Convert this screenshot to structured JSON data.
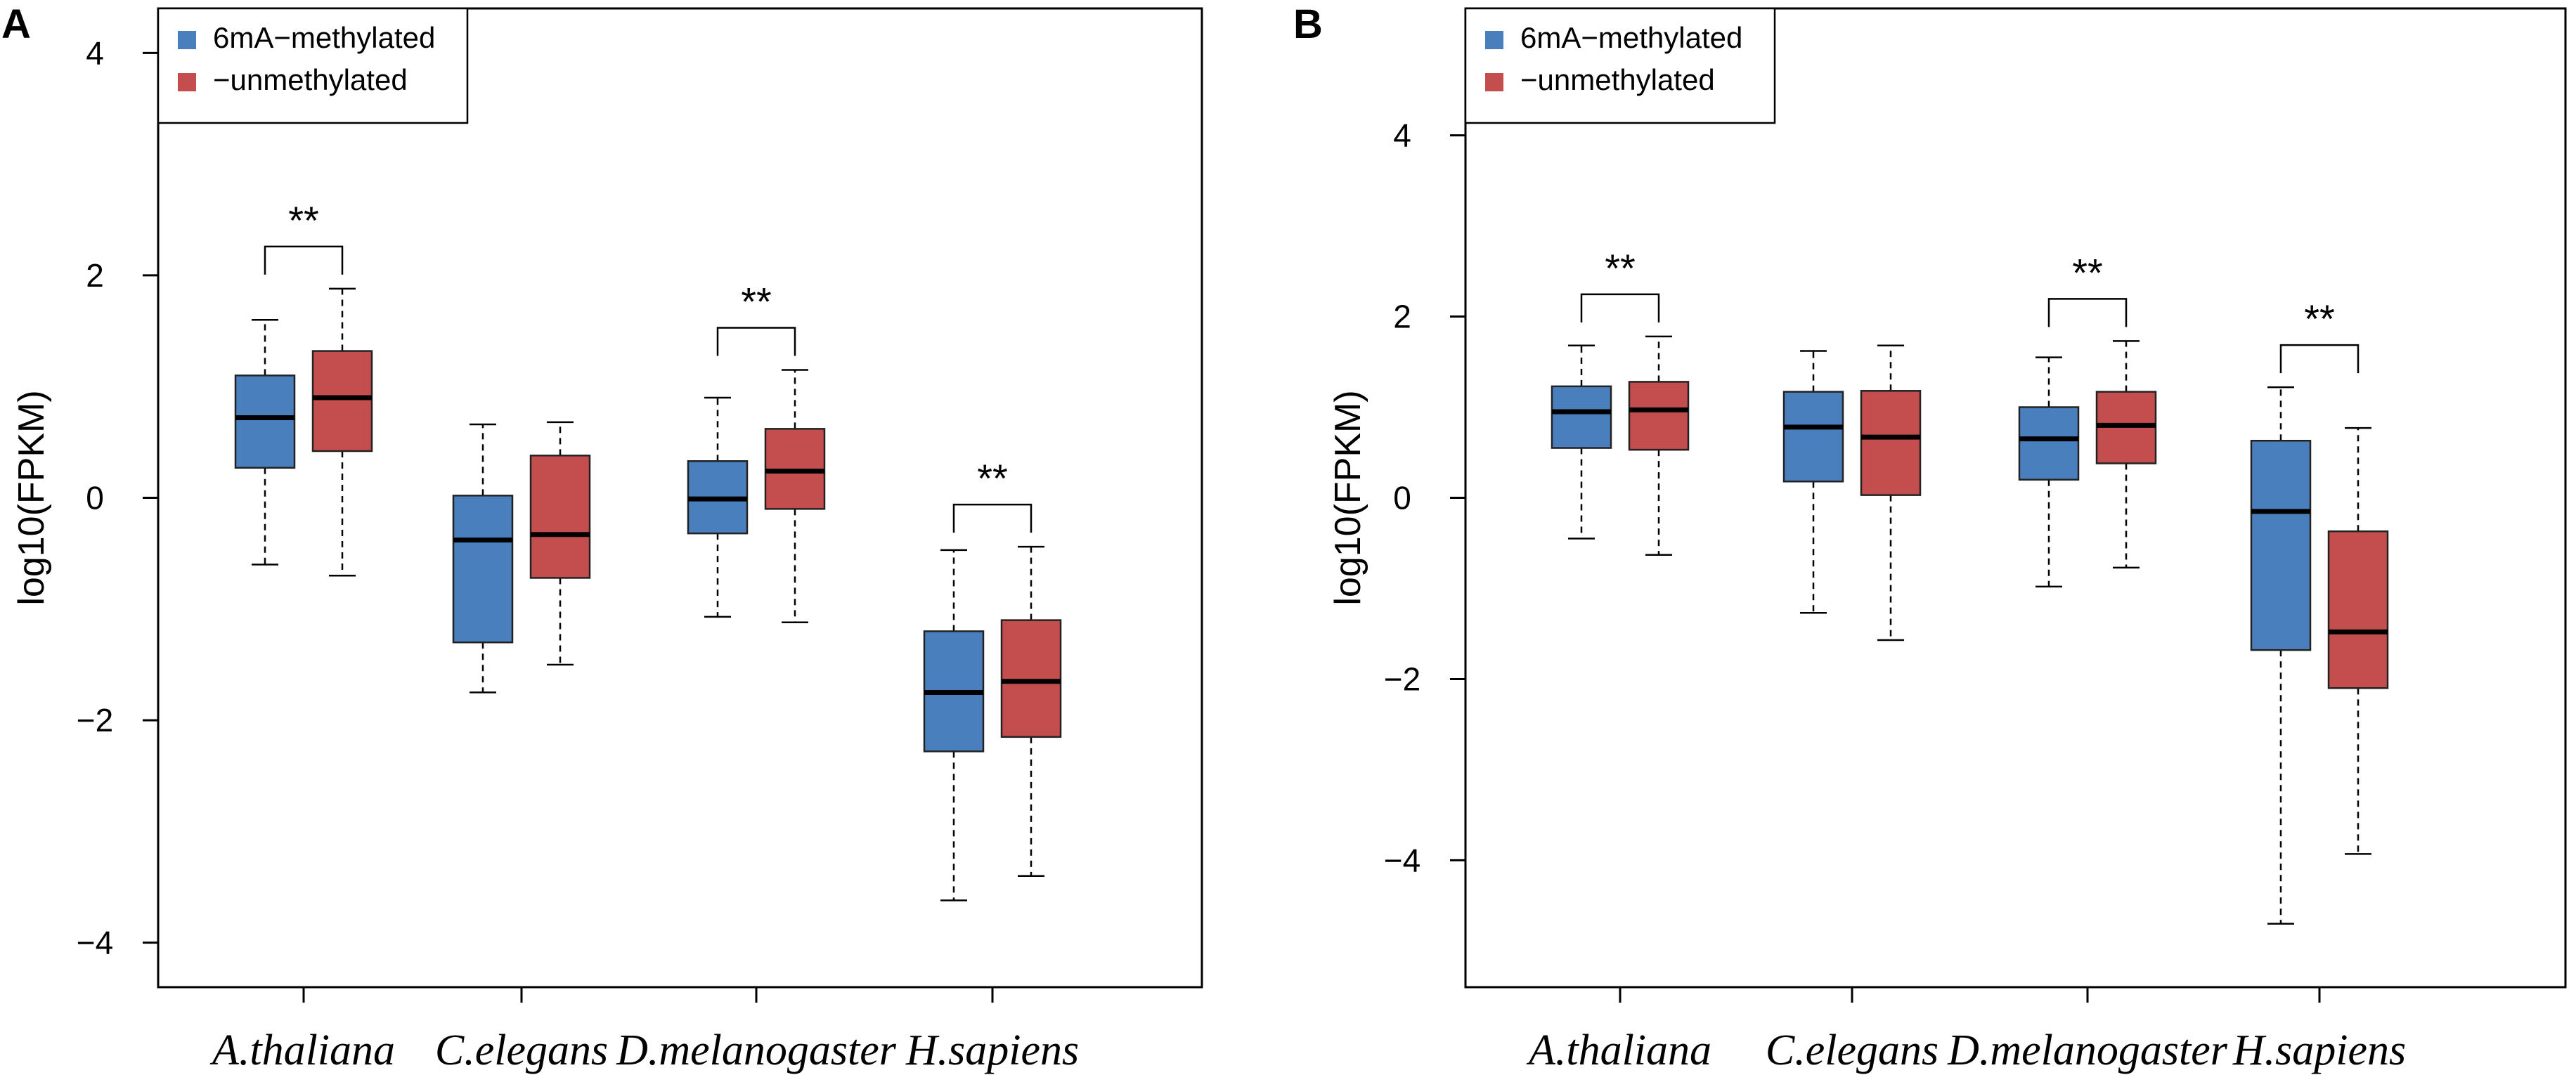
{
  "colors": {
    "methylated": "#4a7fbe",
    "unmethylated": "#c44e4d"
  },
  "chart_data": [
    {
      "type": "boxplot",
      "panel": "A",
      "ylabel": "log10(FPKM)",
      "ylim": [
        -4.4,
        4.4
      ],
      "yticks": [
        -4,
        -2,
        0,
        2,
        4
      ],
      "categories": [
        "A.thaliana",
        "C.elegans",
        "D.melanogaster",
        "H.sapiens"
      ],
      "legend": [
        "6mA−methylated",
        "−unmethylated"
      ],
      "significance": [
        "**",
        "",
        "**",
        "**"
      ],
      "series": [
        {
          "name": "6mA−methylated",
          "color": "#4a7fbe",
          "boxes": [
            {
              "whislo": -0.6,
              "q1": 0.27,
              "median": 0.72,
              "q3": 1.1,
              "whishi": 1.6
            },
            {
              "whislo": -1.75,
              "q1": -1.3,
              "median": -0.38,
              "q3": 0.02,
              "whishi": 0.66
            },
            {
              "whislo": -1.07,
              "q1": -0.32,
              "median": -0.01,
              "q3": 0.33,
              "whishi": 0.9
            },
            {
              "whislo": -3.62,
              "q1": -2.28,
              "median": -1.75,
              "q3": -1.2,
              "whishi": -0.47
            }
          ]
        },
        {
          "name": "−unmethylated",
          "color": "#c44e4d",
          "boxes": [
            {
              "whislo": -0.7,
              "q1": 0.42,
              "median": 0.9,
              "q3": 1.32,
              "whishi": 1.88
            },
            {
              "whislo": -1.5,
              "q1": -0.72,
              "median": -0.33,
              "q3": 0.38,
              "whishi": 0.68
            },
            {
              "whislo": -1.12,
              "q1": -0.1,
              "median": 0.24,
              "q3": 0.62,
              "whishi": 1.15
            },
            {
              "whislo": -3.4,
              "q1": -2.15,
              "median": -1.65,
              "q3": -1.1,
              "whishi": -0.44
            }
          ]
        }
      ]
    },
    {
      "type": "boxplot",
      "panel": "B",
      "ylabel": "log10(FPKM)",
      "ylim": [
        -5.4,
        5.4
      ],
      "yticks": [
        -4,
        -2,
        0,
        2,
        4
      ],
      "categories": [
        "A.thaliana",
        "C.elegans",
        "D.melanogaster",
        "H.sapiens"
      ],
      "legend": [
        "6mA−methylated",
        "−unmethylated"
      ],
      "significance": [
        "**",
        "",
        "**",
        "**"
      ],
      "series": [
        {
          "name": "6mA−methylated",
          "color": "#4a7fbe",
          "boxes": [
            {
              "whislo": -0.45,
              "q1": 0.55,
              "median": 0.95,
              "q3": 1.23,
              "whishi": 1.68
            },
            {
              "whislo": -1.27,
              "q1": 0.18,
              "median": 0.78,
              "q3": 1.17,
              "whishi": 1.62
            },
            {
              "whislo": -0.98,
              "q1": 0.2,
              "median": 0.65,
              "q3": 1.0,
              "whishi": 1.55
            },
            {
              "whislo": -4.7,
              "q1": -1.68,
              "median": -0.15,
              "q3": 0.63,
              "whishi": 1.22
            }
          ]
        },
        {
          "name": "−unmethylated",
          "color": "#c44e4d",
          "boxes": [
            {
              "whislo": -0.63,
              "q1": 0.53,
              "median": 0.97,
              "q3": 1.28,
              "whishi": 1.78
            },
            {
              "whislo": -1.57,
              "q1": 0.03,
              "median": 0.67,
              "q3": 1.18,
              "whishi": 1.68
            },
            {
              "whislo": -0.77,
              "q1": 0.38,
              "median": 0.8,
              "q3": 1.17,
              "whishi": 1.73
            },
            {
              "whislo": -3.93,
              "q1": -2.1,
              "median": -1.48,
              "q3": -0.37,
              "whishi": 0.77
            }
          ]
        }
      ]
    }
  ]
}
